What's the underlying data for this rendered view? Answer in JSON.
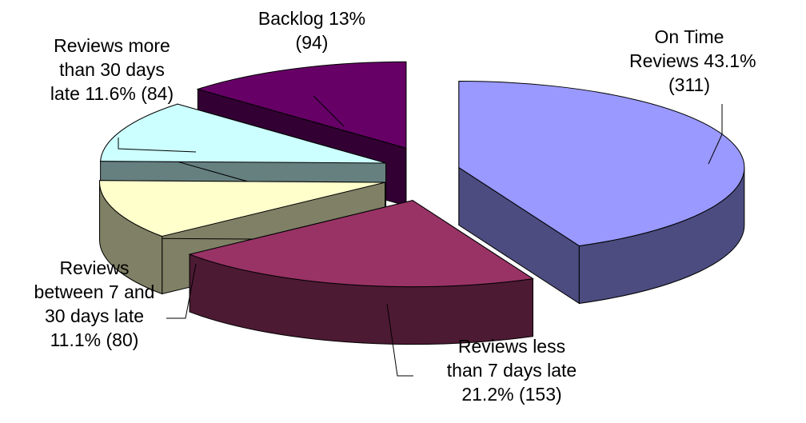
{
  "chart_data": {
    "type": "pie",
    "title": "",
    "exploded": true,
    "three_d": true,
    "slices": [
      {
        "key": "ontime",
        "label_lines": [
          "On Time",
          "Reviews 43.1%",
          "(311)"
        ],
        "percent": 43.1,
        "value": 311,
        "top_color": "#9999ff",
        "side_color": "#4c4c80"
      },
      {
        "key": "less7",
        "label_lines": [
          "Reviews less",
          "than 7 days late",
          "21.2% (153)"
        ],
        "percent": 21.2,
        "value": 153,
        "top_color": "#993366",
        "side_color": "#4d1a33"
      },
      {
        "key": "7to30",
        "label_lines": [
          "Reviews",
          "between 7 and",
          "30 days late",
          "11.1% (80)"
        ],
        "percent": 11.1,
        "value": 80,
        "top_color": "#ffffcc",
        "side_color": "#808066"
      },
      {
        "key": "more30",
        "label_lines": [
          "Reviews more",
          "than 30 days",
          "late 11.6% (84)"
        ],
        "percent": 11.6,
        "value": 84,
        "top_color": "#ccffff",
        "side_color": "#668080"
      },
      {
        "key": "backlog",
        "label_lines": [
          "Backlog 13%",
          "(94)"
        ],
        "percent": 13.0,
        "value": 94,
        "top_color": "#660066",
        "side_color": "#330033"
      }
    ]
  }
}
